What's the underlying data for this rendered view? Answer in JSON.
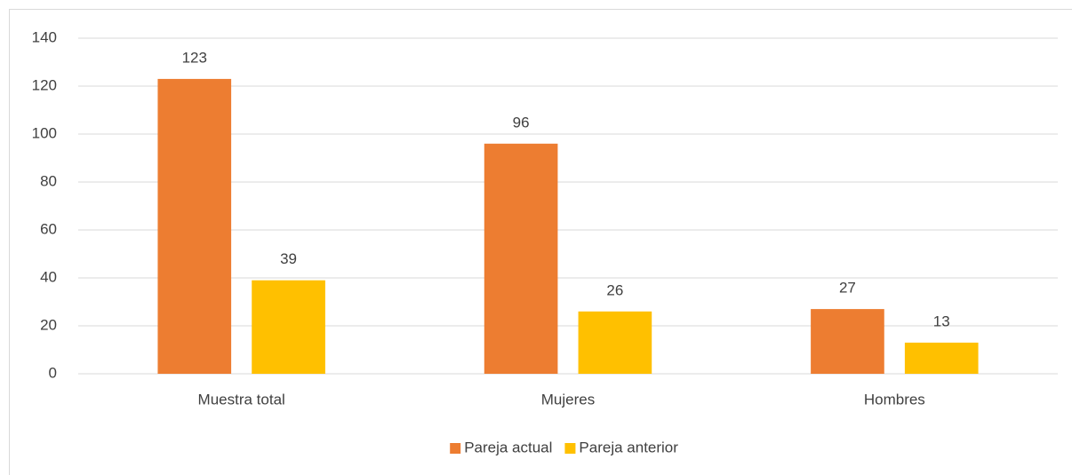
{
  "chart_data": {
    "type": "bar",
    "categories": [
      "Muestra total",
      "Mujeres",
      "Hombres"
    ],
    "series": [
      {
        "name": "Pareja actual",
        "color": "#ed7d31",
        "values": [
          123,
          96,
          27
        ]
      },
      {
        "name": "Pareja anterior",
        "color": "#ffc000",
        "values": [
          39,
          26,
          13
        ]
      }
    ],
    "ylim": [
      0,
      140
    ],
    "yticks": [
      0,
      20,
      40,
      60,
      80,
      100,
      120,
      140
    ],
    "grid": true,
    "legend": "bottom"
  }
}
